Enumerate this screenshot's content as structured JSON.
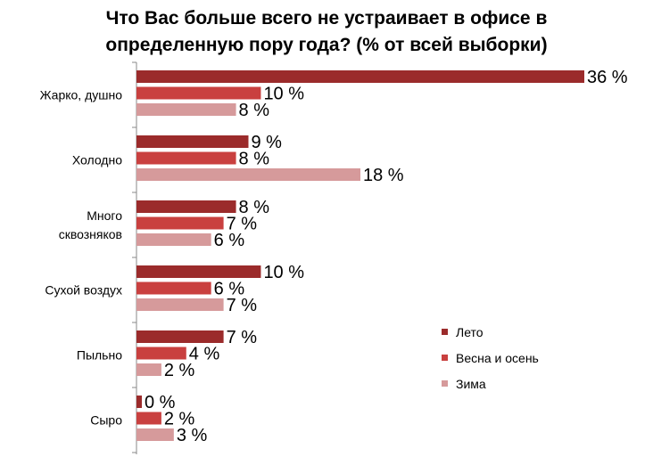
{
  "chart_data": {
    "type": "bar",
    "orientation": "horizontal",
    "title_lines": [
      "Что Вас больше всего не устраивает в офисе в",
      "определенную пору года? (% от всей выборки)"
    ],
    "categories": [
      [
        "Жарко, душно"
      ],
      [
        "Холодно"
      ],
      [
        "Много",
        "сквозняков"
      ],
      [
        "Сухой воздух"
      ],
      [
        "Пыльно"
      ],
      [
        "Сыро"
      ]
    ],
    "series": [
      {
        "name": "Лето",
        "values": [
          36,
          9,
          8,
          10,
          7,
          0
        ],
        "labels": [
          "36 %",
          "9 %",
          "8 %",
          "10 %",
          "7 %",
          "0 %"
        ],
        "color": "#9b2b2b"
      },
      {
        "name": "Весна и осень",
        "values": [
          10,
          8,
          7,
          6,
          4,
          2
        ],
        "labels": [
          "10 %",
          "8 %",
          "7 %",
          "6 %",
          "4 %",
          "2 %"
        ],
        "color": "#c9403f"
      },
      {
        "name": "Зима",
        "values": [
          8,
          18,
          6,
          7,
          2,
          3
        ],
        "labels": [
          "8 %",
          "18 %",
          "6 %",
          "7 %",
          "2 %",
          "3 %"
        ],
        "color": "#d69a9b"
      }
    ],
    "xlim": [
      0,
      36
    ],
    "legend_position": "right",
    "grid": false
  }
}
